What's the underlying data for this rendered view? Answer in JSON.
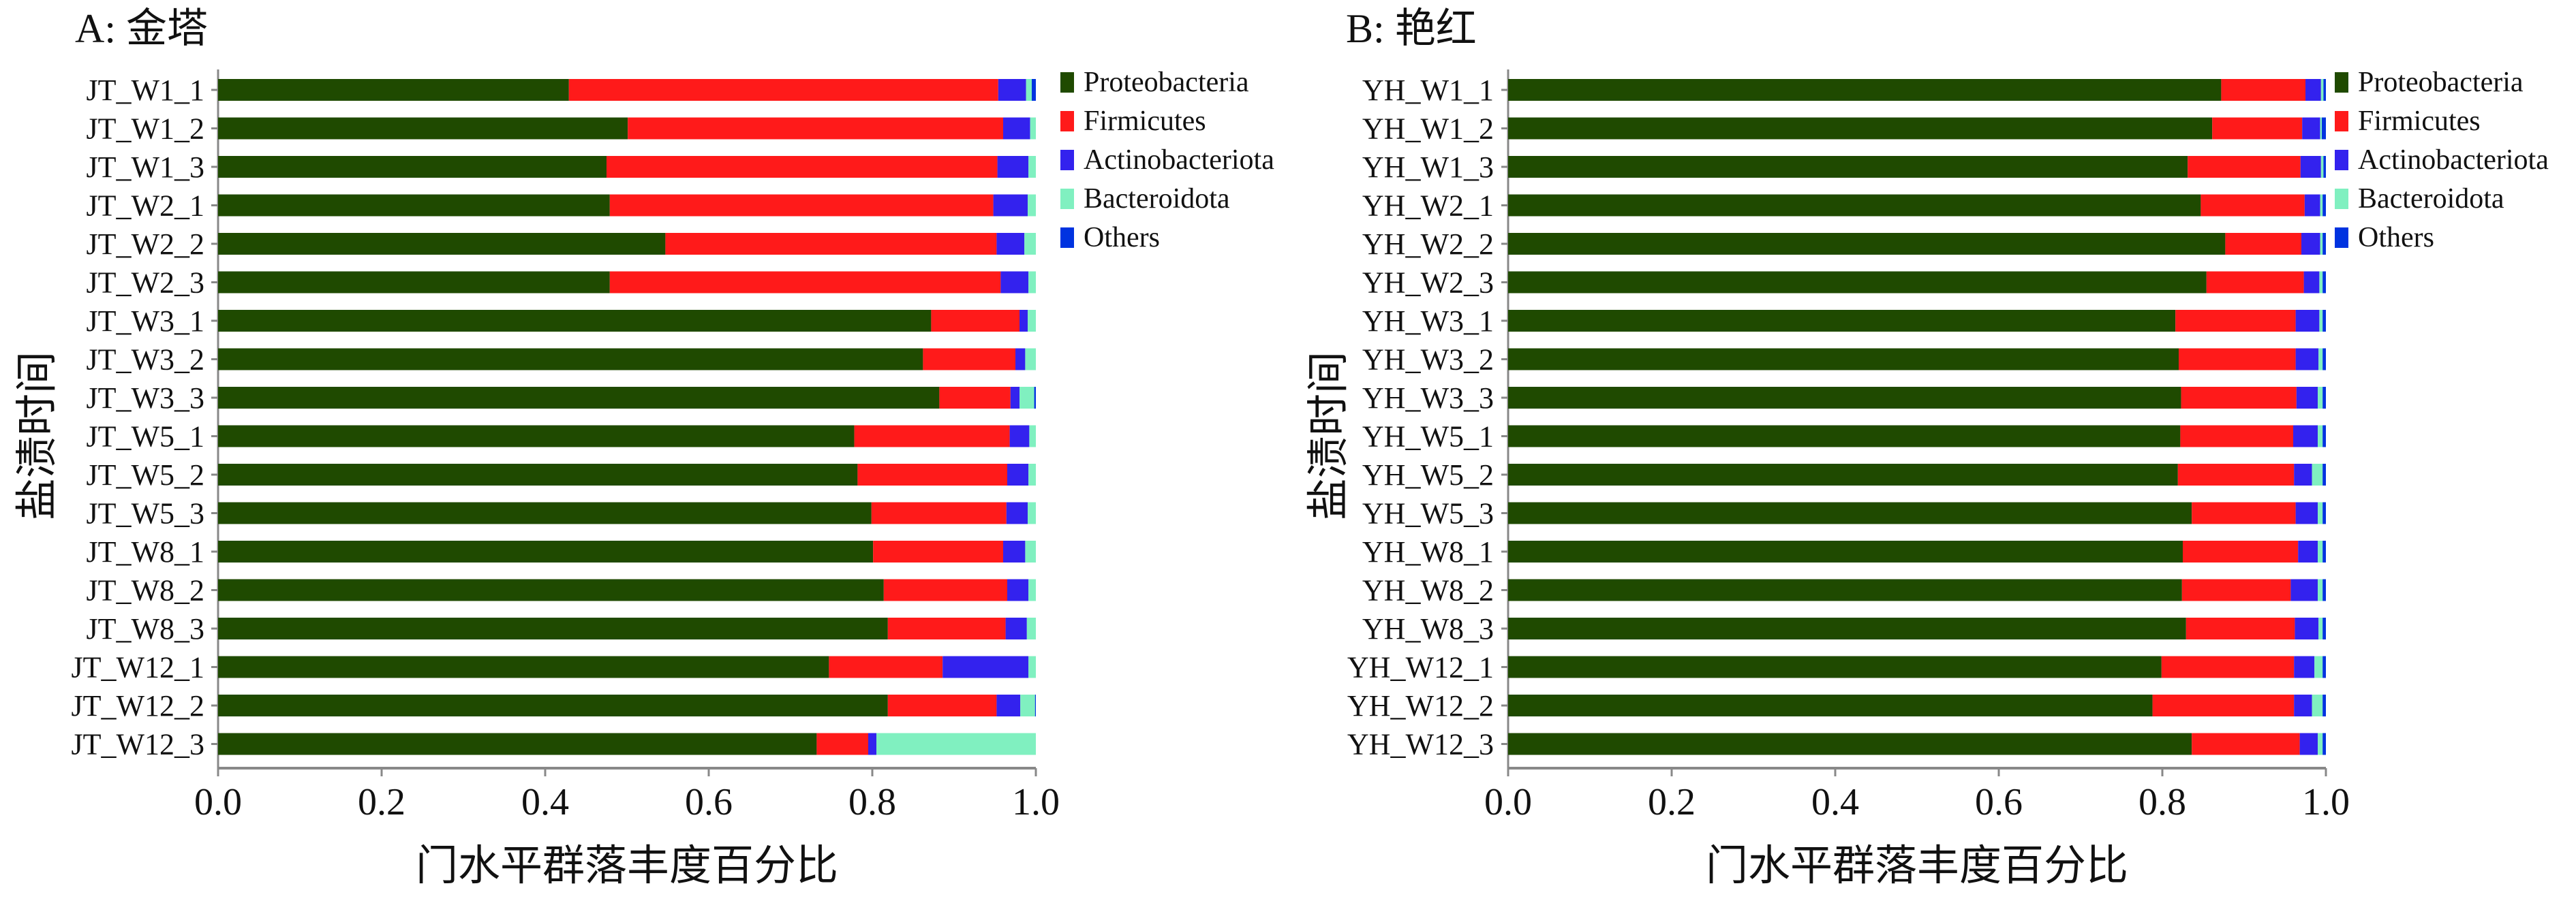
{
  "colors": {
    "Proteobacteria": "#1f4a00",
    "Firmicutes": "#ff1a1a",
    "Actinobacteriota": "#3322ee",
    "Bacteroidota": "#80f0c0",
    "Others": "#0033e0"
  },
  "chart_data": [
    {
      "type": "bar",
      "orientation": "horizontal-stacked",
      "title": "A: 金塔",
      "xlabel": "门水平群落丰度百分比",
      "ylabel": "盐渍时间",
      "xlim": [
        0,
        1.0
      ],
      "xticks": [
        "0.0",
        "0.2",
        "0.4",
        "0.6",
        "0.8",
        "1.0"
      ],
      "legend": [
        "Proteobacteria",
        "Firmicutes",
        "Actinobacteriota",
        "Bacteroidota",
        "Others"
      ],
      "legend_position": "right",
      "categories": [
        "JT_W1_1",
        "JT_W1_2",
        "JT_W1_3",
        "JT_W2_1",
        "JT_W2_2",
        "JT_W2_3",
        "JT_W3_1",
        "JT_W3_2",
        "JT_W3_3",
        "JT_W5_1",
        "JT_W5_2",
        "JT_W5_3",
        "JT_W8_1",
        "JT_W8_2",
        "JT_W8_3",
        "JT_W12_1",
        "JT_W12_2",
        "JT_W12_3"
      ],
      "series": [
        {
          "name": "Proteobacteria",
          "values": [
            0.429,
            0.501,
            0.475,
            0.479,
            0.547,
            0.479,
            0.872,
            0.862,
            0.882,
            0.778,
            0.782,
            0.799,
            0.801,
            0.814,
            0.819,
            0.747,
            0.819,
            0.732
          ]
        },
        {
          "name": "Firmicutes",
          "values": [
            0.525,
            0.459,
            0.478,
            0.469,
            0.405,
            0.478,
            0.108,
            0.113,
            0.087,
            0.19,
            0.183,
            0.165,
            0.159,
            0.151,
            0.144,
            0.139,
            0.133,
            0.063
          ]
        },
        {
          "name": "Actinobacteriota",
          "values": [
            0.034,
            0.033,
            0.038,
            0.042,
            0.034,
            0.034,
            0.01,
            0.012,
            0.011,
            0.024,
            0.026,
            0.026,
            0.027,
            0.026,
            0.026,
            0.105,
            0.029,
            0.01
          ]
        },
        {
          "name": "Bacteroidota",
          "values": [
            0.007,
            0.007,
            0.009,
            0.01,
            0.014,
            0.009,
            0.01,
            0.013,
            0.018,
            0.008,
            0.009,
            0.01,
            0.013,
            0.009,
            0.011,
            0.009,
            0.018,
            0.195
          ]
        },
        {
          "name": "Others",
          "values": [
            0.005,
            0.0,
            0.0,
            0.0,
            0.0,
            0.0,
            0.0,
            0.0,
            0.002,
            0.0,
            0.0,
            0.0,
            0.0,
            0.0,
            0.0,
            0.0,
            0.001,
            0.0
          ]
        }
      ]
    },
    {
      "type": "bar",
      "orientation": "horizontal-stacked",
      "title": "B: 艳红",
      "xlabel": "门水平群落丰度百分比",
      "ylabel": "盐渍时间",
      "xlim": [
        0,
        1.0
      ],
      "xticks": [
        "0.0",
        "0.2",
        "0.4",
        "0.6",
        "0.8",
        "1.0"
      ],
      "legend": [
        "Proteobacteria",
        "Firmicutes",
        "Actinobacteriota",
        "Bacteroidota",
        "Others"
      ],
      "legend_position": "right",
      "categories": [
        "YH_W1_1",
        "YH_W1_2",
        "YH_W1_3",
        "YH_W2_1",
        "YH_W2_2",
        "YH_W2_3",
        "YH_W3_1",
        "YH_W3_2",
        "YH_W3_3",
        "YH_W5_1",
        "YH_W5_2",
        "YH_W5_3",
        "YH_W8_1",
        "YH_W8_2",
        "YH_W8_3",
        "YH_W12_1",
        "YH_W12_2",
        "YH_W12_3"
      ],
      "series": [
        {
          "name": "Proteobacteria",
          "values": [
            0.872,
            0.861,
            0.831,
            0.847,
            0.877,
            0.854,
            0.816,
            0.82,
            0.823,
            0.822,
            0.819,
            0.836,
            0.825,
            0.824,
            0.829,
            0.799,
            0.788,
            0.836
          ]
        },
        {
          "name": "Firmicutes",
          "values": [
            0.103,
            0.11,
            0.138,
            0.127,
            0.093,
            0.119,
            0.147,
            0.143,
            0.141,
            0.138,
            0.142,
            0.127,
            0.141,
            0.133,
            0.133,
            0.162,
            0.173,
            0.132
          ]
        },
        {
          "name": "Actinobacteriota",
          "values": [
            0.019,
            0.022,
            0.025,
            0.019,
            0.023,
            0.019,
            0.029,
            0.028,
            0.026,
            0.03,
            0.022,
            0.027,
            0.024,
            0.033,
            0.029,
            0.025,
            0.022,
            0.022
          ]
        },
        {
          "name": "Bacteroidota",
          "values": [
            0.003,
            0.002,
            0.003,
            0.003,
            0.003,
            0.004,
            0.004,
            0.005,
            0.006,
            0.006,
            0.013,
            0.006,
            0.006,
            0.006,
            0.005,
            0.01,
            0.013,
            0.006
          ]
        },
        {
          "name": "Others",
          "values": [
            0.003,
            0.005,
            0.003,
            0.004,
            0.004,
            0.004,
            0.004,
            0.004,
            0.004,
            0.004,
            0.004,
            0.004,
            0.004,
            0.004,
            0.004,
            0.004,
            0.004,
            0.004
          ]
        }
      ]
    }
  ]
}
